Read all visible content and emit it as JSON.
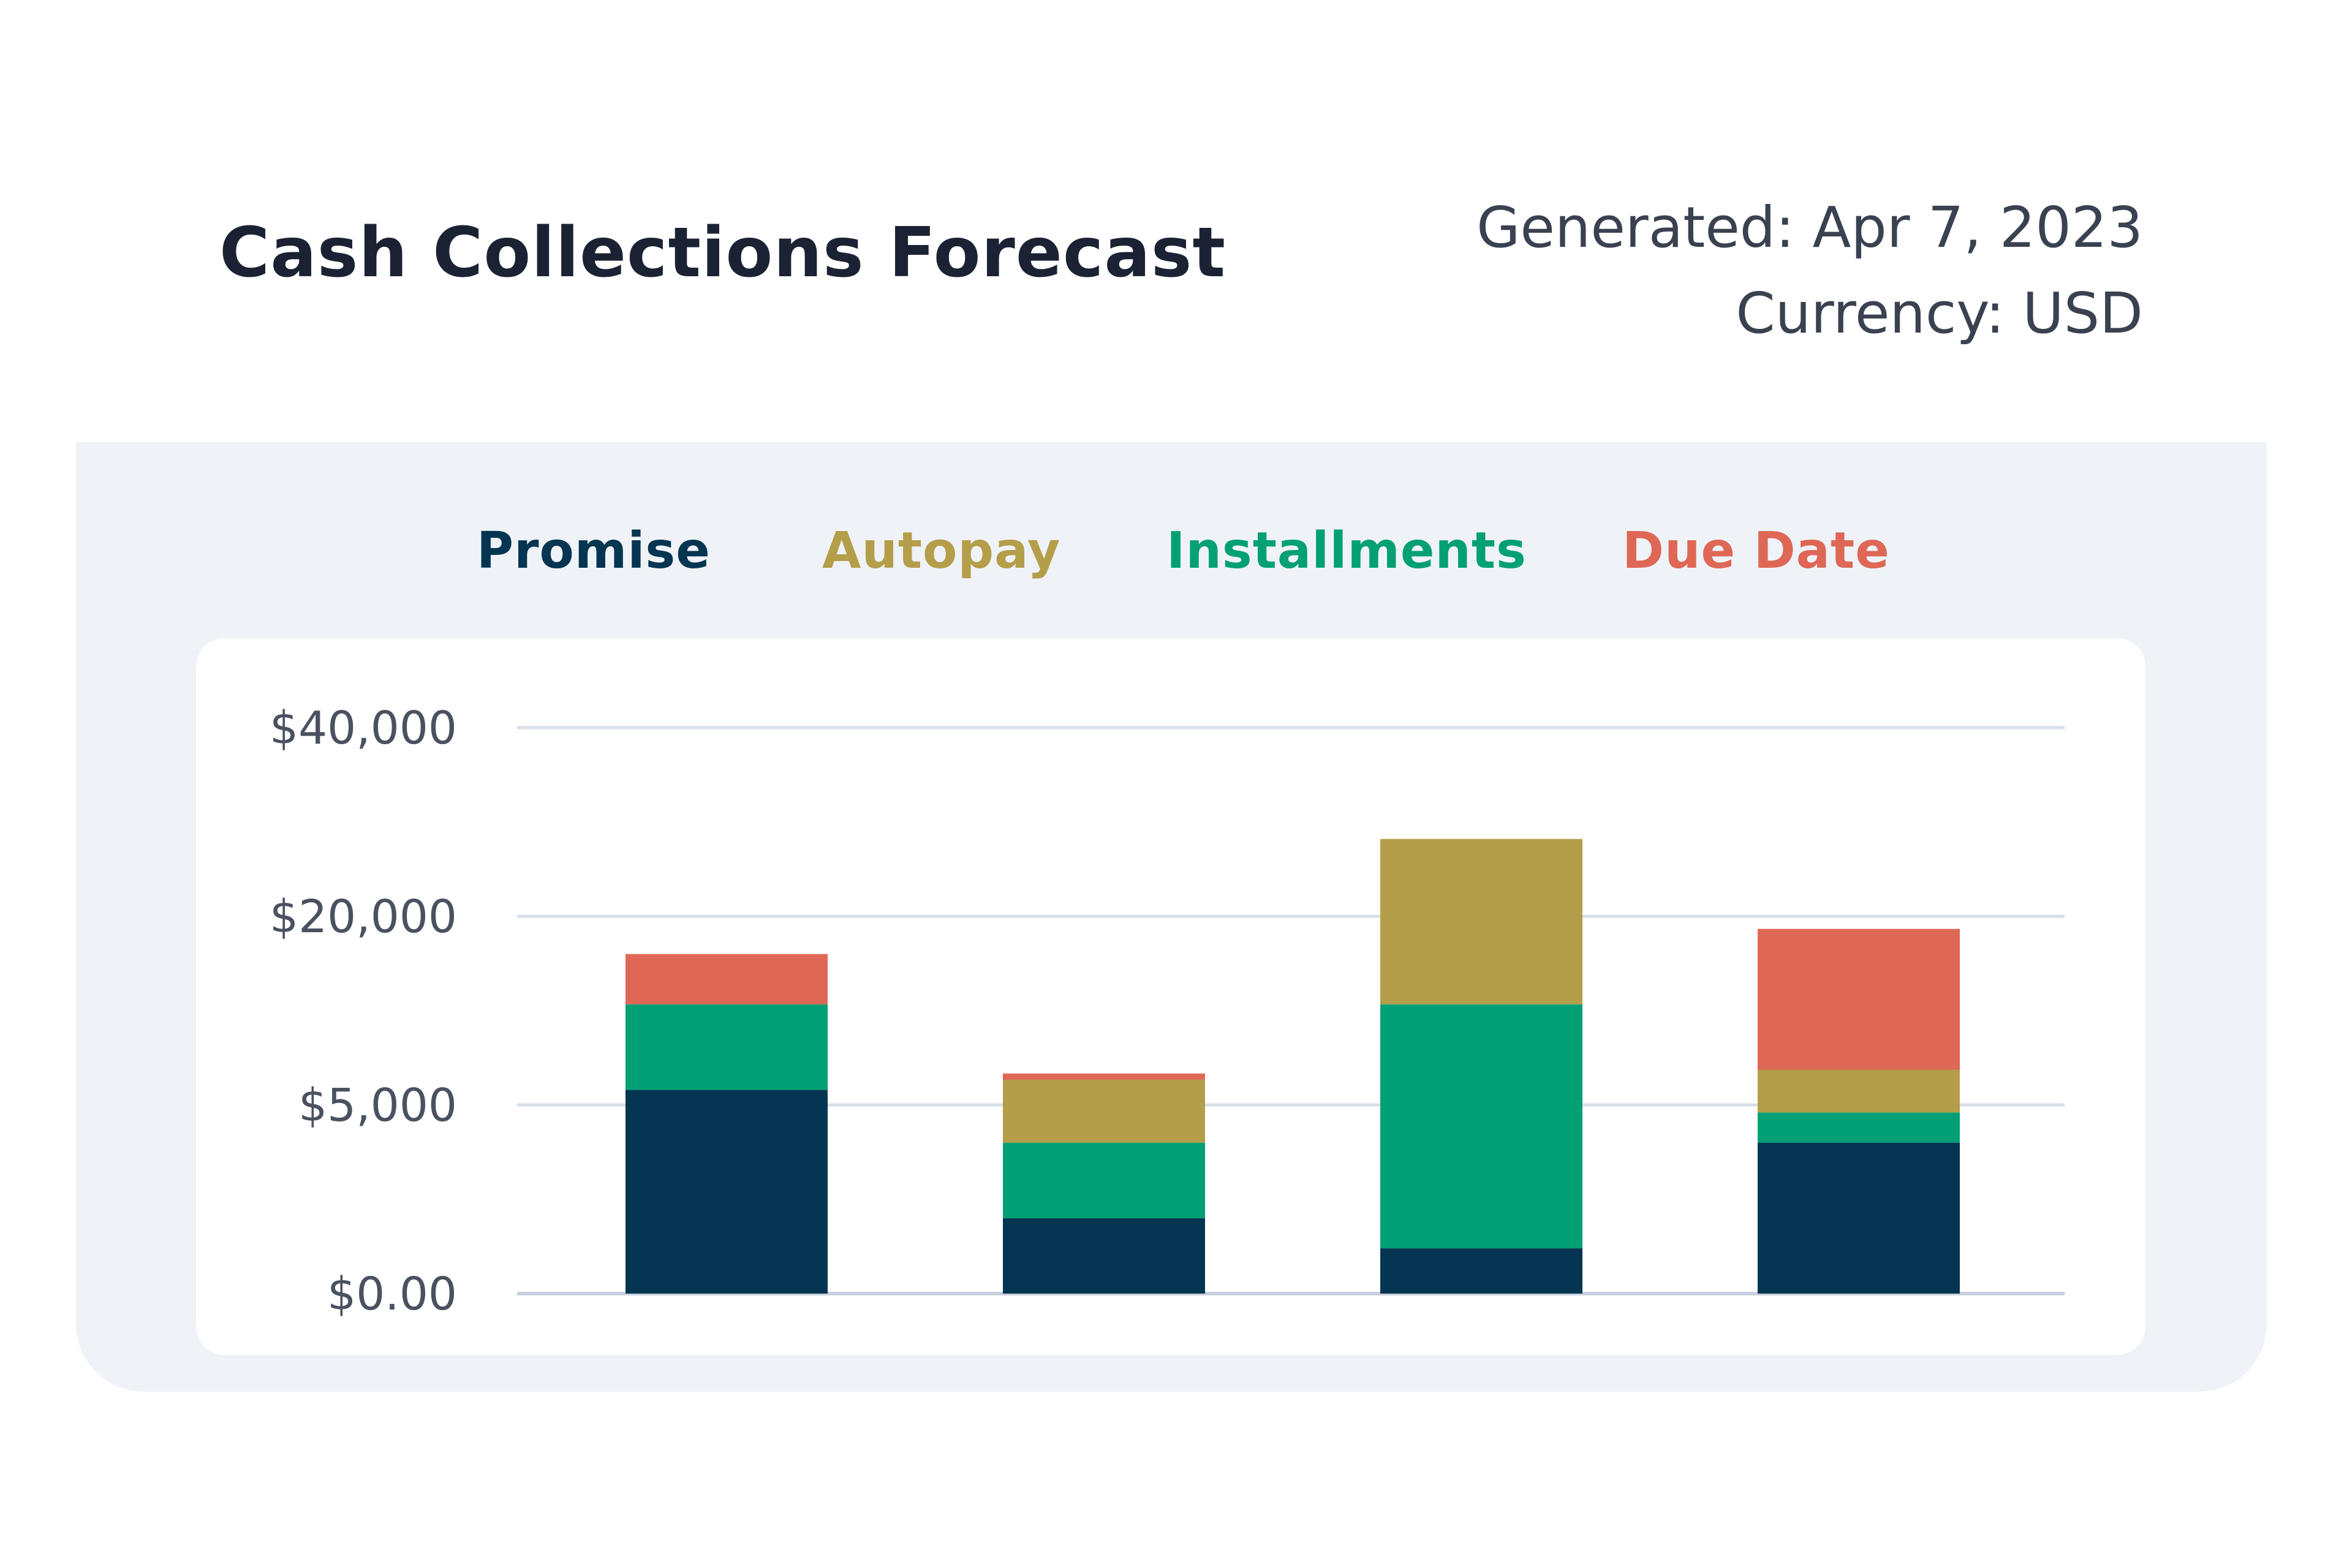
{
  "header": {
    "title": "Cash Collections Forecast",
    "generated": "Generated: Apr 7, 2023",
    "currency": "Currency: USD"
  },
  "colors": {
    "Promise": "#063551",
    "Autopay": "#b59e4a",
    "Installments": "#02a074",
    "Due Date": "#df6756",
    "grid": "#d6dee8",
    "axis": "#c9d1de"
  },
  "chart_data": {
    "type": "bar",
    "stacked": true,
    "title": "Cash Collections Forecast",
    "xlabel": "",
    "ylabel": "",
    "y_scale": "piecewise-linear between ticks",
    "y_ticks": [
      0,
      5000,
      20000,
      40000
    ],
    "y_tick_labels": [
      "$0.00",
      "$5,000",
      "$20,000",
      "$40,000"
    ],
    "ylim": [
      0,
      40000
    ],
    "grid": true,
    "legend_position": "top-center",
    "categories": [
      "",
      "",
      "",
      ""
    ],
    "series": [
      {
        "name": "Promise",
        "values": [
          6200,
          2000,
          1200,
          4000
        ]
      },
      {
        "name": "Installments",
        "values": [
          6800,
          2000,
          11800,
          800
        ]
      },
      {
        "name": "Autopay",
        "values": [
          0,
          3000,
          15200,
          3000
        ]
      },
      {
        "name": "Due Date",
        "values": [
          4000,
          500,
          0,
          11200
        ]
      }
    ],
    "stack_totals": [
      17000,
      7500,
      28200,
      19000
    ]
  }
}
